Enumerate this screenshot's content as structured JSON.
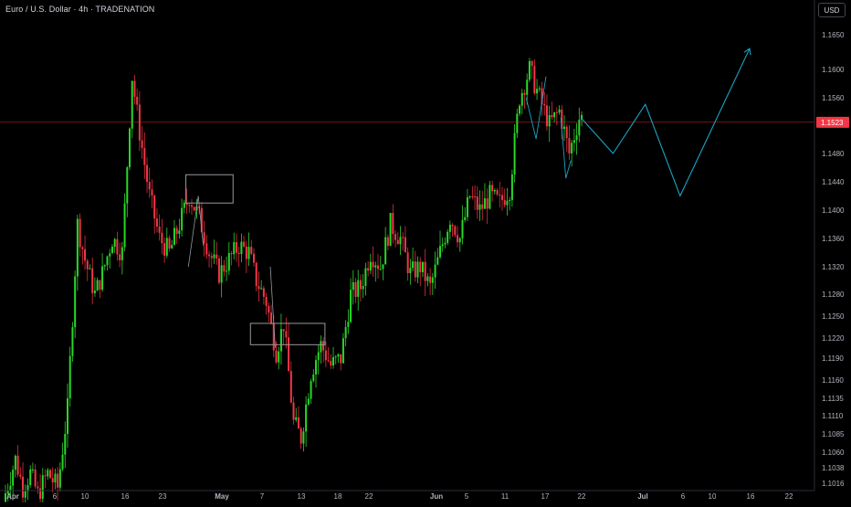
{
  "header": {
    "title": "Euro / U.S. Dollar · 4h · TRADENATION",
    "currency_button": "USD"
  },
  "colors": {
    "up": "#26d926",
    "down": "#f23645",
    "wick_up": "#2fd12f",
    "wick_down": "#e0303c",
    "price_line": "#f23645",
    "projection": "#1aa4c4",
    "box": "#9598a1",
    "arrow": "#9598a1",
    "axis_text": "#b2b5be",
    "price_tag_bg": "#f23645"
  },
  "chart_data": {
    "type": "candlestick",
    "symbol": "Euro / U.S. Dollar",
    "timeframe": "4h",
    "broker": "TRADENATION",
    "y_ticks": [
      "1.1650",
      "1.1600",
      "1.1560",
      "1.1520",
      "1.1480",
      "1.1440",
      "1.1400",
      "1.1360",
      "1.1320",
      "1.1280",
      "1.1250",
      "1.1220",
      "1.1190",
      "1.1160",
      "1.1135",
      "1.1110",
      "1.1085",
      "1.1060",
      "1.1038",
      "1.1016"
    ],
    "x_ticks": [
      "Apr",
      "6",
      "10",
      "16",
      "23",
      "May",
      "7",
      "13",
      "18",
      "22",
      "Jun",
      "5",
      "11",
      "17",
      "22",
      "Jul",
      "6",
      "10",
      "16",
      "22"
    ],
    "current_price": "1.1523",
    "price_path": [
      [
        0,
        1.099
      ],
      [
        5,
        1.105
      ],
      [
        8,
        1.101
      ],
      [
        11,
        1.103
      ],
      [
        14,
        1.1
      ],
      [
        18,
        1.103
      ],
      [
        22,
        1.101
      ],
      [
        26,
        1.112
      ],
      [
        30,
        1.138
      ],
      [
        33,
        1.133
      ],
      [
        37,
        1.128
      ],
      [
        40,
        1.131
      ],
      [
        44,
        1.136
      ],
      [
        48,
        1.134
      ],
      [
        52,
        1.159
      ],
      [
        55,
        1.151
      ],
      [
        59,
        1.142
      ],
      [
        63,
        1.136
      ],
      [
        67,
        1.134
      ],
      [
        71,
        1.138
      ],
      [
        75,
        1.142
      ],
      [
        79,
        1.139
      ],
      [
        83,
        1.134
      ],
      [
        87,
        1.131
      ],
      [
        91,
        1.133
      ],
      [
        95,
        1.135
      ],
      [
        99,
        1.134
      ],
      [
        102,
        1.13
      ],
      [
        106,
        1.127
      ],
      [
        110,
        1.12
      ],
      [
        113,
        1.124
      ],
      [
        117,
        1.11
      ],
      [
        120,
        1.108
      ],
      [
        124,
        1.117
      ],
      [
        128,
        1.121
      ],
      [
        132,
        1.118
      ],
      [
        136,
        1.119
      ],
      [
        140,
        1.128
      ],
      [
        144,
        1.129
      ],
      [
        148,
        1.134
      ],
      [
        152,
        1.132
      ],
      [
        156,
        1.138
      ],
      [
        160,
        1.136
      ],
      [
        164,
        1.131
      ],
      [
        168,
        1.132
      ],
      [
        172,
        1.129
      ],
      [
        176,
        1.134
      ],
      [
        180,
        1.139
      ],
      [
        184,
        1.136
      ],
      [
        188,
        1.142
      ],
      [
        192,
        1.14
      ],
      [
        196,
        1.142
      ],
      [
        200,
        1.141
      ],
      [
        204,
        1.143
      ],
      [
        208,
        1.156
      ],
      [
        212,
        1.16
      ],
      [
        216,
        1.156
      ],
      [
        220,
        1.152
      ],
      [
        224,
        1.154
      ],
      [
        228,
        1.148
      ],
      [
        232,
        1.153
      ]
    ]
  },
  "projection": {
    "points": [
      [
        232,
        1.153
      ],
      [
        245,
        1.148
      ],
      [
        258,
        1.155
      ],
      [
        272,
        1.142
      ],
      [
        300,
        1.163
      ]
    ]
  },
  "annotations": {
    "box1": {
      "t1": 73,
      "t2": 92,
      "p1": 1.145,
      "p2": 1.141
    },
    "box2": {
      "t1": 99,
      "t2": 129,
      "p1": 1.124,
      "p2": 1.121
    }
  }
}
